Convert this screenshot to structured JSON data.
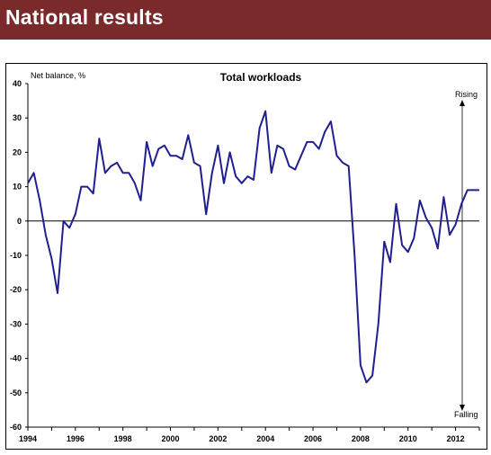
{
  "header": {
    "title": "National results"
  },
  "colors": {
    "banner": "#7a2a2a",
    "series": "#1f1f8f"
  },
  "chart_data": {
    "type": "line",
    "title": "Total workloads",
    "ylabel": "Net balance, %",
    "xlabel": "",
    "ylim": [
      -60,
      40
    ],
    "xlim": [
      1994,
      2013
    ],
    "yticks": [
      40,
      30,
      20,
      10,
      0,
      -10,
      -20,
      -30,
      -40,
      -50,
      -60
    ],
    "xticks": [
      "1994",
      "1996",
      "1998",
      "2000",
      "2002",
      "2004",
      "2006",
      "2008",
      "2010",
      "2012"
    ],
    "annotations": {
      "top": "Rising",
      "bottom": "Falling"
    },
    "grid": false,
    "legend": "none",
    "series": [
      {
        "x": [
          1994.0,
          1994.25,
          1994.5,
          1994.75,
          1995.0,
          1995.25,
          1995.5,
          1995.75,
          1996.0,
          1996.25,
          1996.5,
          1996.75,
          1997.0,
          1997.25,
          1997.5,
          1997.75,
          1998.0,
          1998.25,
          1998.5,
          1998.75,
          1999.0,
          1999.25,
          1999.5,
          1999.75,
          2000.0,
          2000.25,
          2000.5,
          2000.75,
          2001.0,
          2001.25,
          2001.5,
          2001.75,
          2002.0,
          2002.25,
          2002.5,
          2002.75,
          2003.0,
          2003.25,
          2003.5,
          2003.75,
          2004.0,
          2004.25,
          2004.5,
          2004.75,
          2005.0,
          2005.25,
          2005.5,
          2005.75,
          2006.0,
          2006.25,
          2006.5,
          2006.75,
          2007.0,
          2007.25,
          2007.5,
          2007.75,
          2008.0,
          2008.25,
          2008.5,
          2008.75,
          2009.0,
          2009.25,
          2009.5,
          2009.75,
          2010.0,
          2010.25,
          2010.5,
          2010.75,
          2011.0,
          2011.25,
          2011.5,
          2011.75,
          2012.0,
          2012.25,
          2012.5,
          2012.75,
          2013.0
        ],
        "values": [
          11,
          14,
          6,
          -4,
          -11,
          -21,
          0,
          -2,
          2,
          10,
          10,
          8,
          24,
          14,
          16,
          17,
          14,
          14,
          11,
          6,
          23,
          16,
          21,
          22,
          19,
          19,
          18,
          25,
          17,
          16,
          2,
          14,
          22,
          11,
          20,
          13,
          11,
          13,
          12,
          27,
          32,
          14,
          22,
          21,
          16,
          15,
          19,
          23,
          23,
          21,
          26,
          29,
          19,
          17,
          16,
          -10,
          -42,
          -47,
          -45,
          -30,
          -6,
          -12,
          5,
          -7,
          -9,
          -5,
          6,
          1,
          -2,
          -8,
          7,
          -4,
          -1,
          5,
          9,
          9,
          9
        ]
      }
    ]
  }
}
